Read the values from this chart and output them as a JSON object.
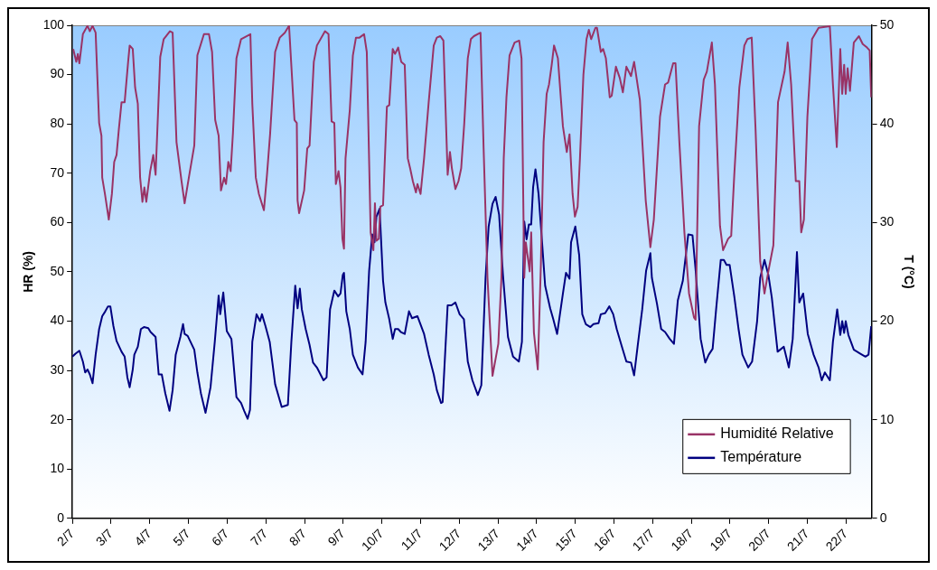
{
  "chart_data": {
    "type": "line",
    "ylabel": "HR (%)",
    "y2label": "T (°C)",
    "xlim": [
      "--07-02",
      "--07-22T15:50"
    ],
    "xticks": [
      {
        "value": "--07-02",
        "label": "2/7"
      },
      {
        "value": "--07-03",
        "label": "3/7"
      },
      {
        "value": "--07-04",
        "label": "4/7"
      },
      {
        "value": "--07-05",
        "label": "5/7"
      },
      {
        "value": "--07-06",
        "label": "6/7"
      },
      {
        "value": "--07-07",
        "label": "7/7"
      },
      {
        "value": "--07-08",
        "label": "8/7"
      },
      {
        "value": "--07-09",
        "label": "9/7"
      },
      {
        "value": "--07-10",
        "label": "10/7"
      },
      {
        "value": "--07-11",
        "label": "11/7"
      },
      {
        "value": "--07-12",
        "label": "12/7"
      },
      {
        "value": "--07-13",
        "label": "13/7"
      },
      {
        "value": "--07-14",
        "label": "14/7"
      },
      {
        "value": "--07-15",
        "label": "15/7"
      },
      {
        "value": "--07-16",
        "label": "16/7"
      },
      {
        "value": "--07-17",
        "label": "17/7"
      },
      {
        "value": "--07-18",
        "label": "18/7"
      },
      {
        "value": "--07-19",
        "label": "19/7"
      },
      {
        "value": "--07-20",
        "label": "20/7"
      },
      {
        "value": "--07-21",
        "label": "21/7"
      },
      {
        "value": "--07-22",
        "label": "22/7"
      }
    ],
    "ylim": [
      0,
      100
    ],
    "yticks": [
      0,
      10,
      20,
      30,
      40,
      50,
      60,
      70,
      80,
      90,
      100
    ],
    "y2lim": [
      0,
      50
    ],
    "y2ticks": [
      0,
      10,
      20,
      30,
      40,
      50
    ],
    "grid": false,
    "legend": "bottom right",
    "marker": "none",
    "line_style": "solid",
    "series": [
      {
        "name": "Humidité Relative",
        "color": "#993366",
        "x": [
          "--07-02T00:29",
          "--07-02T02:24",
          "--07-02T03:22",
          "--07-02T04:19",
          "--07-02T06:29",
          "--07-02T09:22",
          "--07-02T10:48",
          "--07-02T12:29",
          "--07-02T14:24",
          "--07-02T16:34",
          "--07-02T18:00",
          "--07-02T18:29",
          "--07-02T20:10",
          "--07-02T22:34",
          "--07-03T00:29",
          "--07-03T01:55",
          "--07-03T03:22",
          "--07-03T04:48",
          "--07-03T06:29",
          "--07-03T08:24",
          "--07-03T10:34",
          "--07-03T11:31",
          "--07-03T13:26",
          "--07-03T14:53",
          "--07-03T16:34",
          "--07-03T18:00",
          "--07-03T19:26",
          "--07-03T20:38",
          "--07-03T21:50",
          "--07-04T00:14",
          "--07-04T02:10",
          "--07-04T03:36",
          "--07-04T06:29",
          "--07-04T08:38",
          "--07-04T12:29",
          "--07-04T14:10",
          "--07-04T16:34",
          "--07-04T19:41",
          "--07-04T21:36",
          "--07-05T00:14",
          "--07-05T03:36",
          "--07-05T05:31",
          "--07-05T09:36",
          "--07-05T12:43",
          "--07-05T14:38",
          "--07-05T16:34",
          "--07-05T18:43",
          "--07-05T20:10",
          "--07-05T22:05",
          "--07-05T23:17",
          "--07-06T00:43",
          "--07-06T02:10",
          "--07-06T03:36",
          "--07-06T05:46",
          "--07-06T08:38",
          "--07-06T14:24",
          "--07-06T15:36",
          "--07-06T17:46",
          "--07-06T19:41",
          "--07-06T22:48",
          "--07-07T00:43",
          "--07-07T02:38",
          "--07-07T05:46",
          "--07-07T08:38",
          "--07-07T11:46",
          "--07-07T14:24",
          "--07-07T17:46",
          "--07-07T19:12",
          "--07-07T19:41",
          "--07-07T20:38",
          "--07-07T23:46",
          "--07-08T01:41",
          "--07-08T03:07",
          "--07-08T05:46",
          "--07-08T07:41",
          "--07-08T12:43",
          "--07-08T14:53",
          "--07-08T16:48",
          "--07-08T18:29",
          "--07-08T19:26",
          "--07-08T21:07",
          "--07-08T22:19",
          "--07-08T23:31",
          "--07-09T00:29",
          "--07-09T01:26",
          "--07-09T04:05",
          "--07-09T06:00",
          "--07-09T07:55",
          "--07-09T10:05",
          "--07-09T12:58",
          "--07-09T14:38",
          "--07-09T17:02",
          "--07-09T18:43",
          "--07-09T19:41",
          "--07-09T20:38",
          "--07-09T22:05",
          "--07-09T23:02",
          "--07-10T00:43",
          "--07-10T03:07",
          "--07-10T04:34",
          "--07-10T06:43",
          "--07-10T08:10",
          "--07-10T10:05",
          "--07-10T12:00",
          "--07-10T14:10",
          "--07-10T16:05",
          "--07-10T17:31",
          "--07-10T19:12",
          "--07-10T21:07",
          "--07-10T22:05",
          "--07-11T00:00",
          "--07-11T02:10",
          "--07-11T05:02",
          "--07-11T08:10",
          "--07-11T10:05",
          "--07-11T12:14",
          "--07-11T14:10",
          "--07-11T16:48",
          "--07-11T18:14",
          "--07-11T19:26",
          "--07-11T21:36",
          "--07-11T23:31",
          "--07-12T01:12",
          "--07-12T03:07",
          "--07-12T05:17",
          "--07-12T07:12",
          "--07-12T09:07",
          "--07-12T13:12",
          "--07-12T15:07",
          "--07-12T17:31",
          "--07-12T20:38",
          "--07-13T00:14",
          "--07-13T02:10",
          "--07-13T03:36",
          "--07-13T05:17",
          "--07-13T07:12",
          "--07-13T10:19",
          "--07-13T13:12",
          "--07-13T14:38",
          "--07-13T16:19",
          "--07-13T17:17",
          "--07-13T19:41",
          "--07-13T20:38",
          "--07-13T22:19",
          "--07-14T00:43",
          "--07-14T02:38",
          "--07-14T04:19",
          "--07-14T06:14",
          "--07-14T07:41",
          "--07-14T09:22",
          "--07-14T10:48",
          "--07-14T13:12",
          "--07-14T16:19",
          "--07-14T18:43",
          "--07-14T20:24",
          "--07-14T22:19",
          "--07-14T23:46",
          "--07-15T01:26",
          "--07-15T02:53",
          "--07-15T05:02",
          "--07-15T06:58",
          "--07-15T08:24",
          "--07-15T09:50",
          "--07-15T12:29",
          "--07-15T13:26",
          "--07-15T15:50",
          "--07-15T17:17",
          "--07-15T18:58",
          "--07-15T21:22",
          "--07-15T22:34",
          "--07-16T01:12",
          "--07-16T03:36",
          "--07-16T05:31",
          "--07-16T07:41",
          "--07-16T10:34",
          "--07-16T12:29",
          "--07-16T16:05",
          "--07-16T19:41",
          "--07-16T22:34",
          "--07-17T00:43",
          "--07-17T04:34",
          "--07-17T07:41",
          "--07-17T09:36",
          "--07-17T12:43",
          "--07-17T14:10",
          "--07-17T16:34",
          "--07-17T19:41",
          "--07-17T22:34",
          "--07-18T01:41",
          "--07-18T02:38",
          "--07-18T04:48",
          "--07-18T07:41",
          "--07-18T09:36",
          "--07-18T12:43",
          "--07-18T14:38",
          "--07-18T17:46",
          "--07-18T19:41",
          "--07-18T22:48",
          "--07-19T00:43",
          "--07-19T02:38",
          "--07-19T05:46",
          "--07-19T08:53",
          "--07-19T10:48",
          "--07-19T13:26",
          "--07-19T15:50",
          "--07-19T18:43",
          "--07-19T21:22",
          "--07-19T23:46",
          "--07-20T02:53",
          "--07-20T05:46",
          "--07-20T09:50",
          "--07-20T11:46",
          "--07-20T13:55",
          "--07-20T16:48",
          "--07-20T18:58",
          "--07-20T20:10",
          "--07-20T21:50",
          "--07-21T00:00",
          "--07-21T02:53",
          "--07-21T06:58",
          "--07-21T13:55",
          "--07-21T15:50",
          "--07-21T18:14",
          "--07-21T20:24",
          "--07-21T21:36",
          "--07-21T22:48",
          "--07-21T23:46",
          "--07-22T00:58",
          "--07-22T02:24",
          "--07-22T04:48",
          "--07-22T07:55",
          "--07-22T10:19",
          "--07-22T12:58",
          "--07-22T14:38",
          "--07-22T15:36"
        ],
        "values": [
          95.2,
          92.6,
          94.2,
          92.3,
          98.2,
          99.9,
          98.8,
          99.9,
          98.5,
          80.2,
          77.6,
          69.1,
          65.8,
          60.6,
          65.8,
          72.3,
          73.7,
          78.9,
          84.4,
          84.4,
          92.6,
          95.9,
          95.2,
          87.4,
          84.1,
          69.1,
          64.2,
          67.1,
          64.2,
          70.4,
          73.7,
          69.7,
          93.6,
          97.2,
          98.8,
          98.5,
          76.3,
          68.4,
          63.9,
          69.1,
          75.6,
          93.9,
          98.2,
          98.2,
          94.6,
          80.8,
          77.6,
          66.5,
          69.1,
          67.8,
          72.3,
          70.4,
          78.2,
          93.3,
          97.2,
          98.2,
          84.1,
          69.1,
          65.8,
          62.5,
          69.7,
          77.9,
          94.6,
          97.5,
          98.5,
          99.9,
          80.8,
          80.2,
          64.5,
          61.9,
          66.5,
          75,
          75.6,
          92.6,
          95.9,
          98.8,
          98.2,
          80.5,
          80.2,
          67.8,
          70.4,
          67.1,
          56.7,
          54.7,
          73,
          82.8,
          93.9,
          97.5,
          97.5,
          98.2,
          94.6,
          58,
          54.4,
          63.9,
          56.3,
          56.7,
          63.2,
          63.5,
          83.5,
          83.8,
          95.2,
          94.2,
          95.5,
          92.6,
          92,
          73,
          71,
          68.4,
          66.1,
          67.8,
          65.8,
          73,
          84.4,
          95.9,
          97.5,
          97.8,
          96.9,
          69.7,
          74.3,
          71,
          66.8,
          68.4,
          71,
          80.2,
          93.3,
          97.2,
          97.8,
          98.5,
          75,
          48.8,
          28.9,
          35.4,
          48.8,
          73,
          85.4,
          93.9,
          96.5,
          96.9,
          93.3,
          48.8,
          56,
          50.1,
          58,
          37.7,
          30.2,
          51.4,
          76.3,
          86.1,
          88,
          92,
          95.9,
          93.3,
          79.5,
          74.3,
          77.9,
          65.8,
          61.2,
          63.2,
          73,
          90,
          97.2,
          99.1,
          97.2,
          99.5,
          99.5,
          94.6,
          95.2,
          93.3,
          85.4,
          85.7,
          91.6,
          89.3,
          86.4,
          91.6,
          89.7,
          92.6,
          84.8,
          64.5,
          55,
          60.6,
          81.5,
          88,
          88.4,
          92.3,
          92.3,
          76.3,
          58,
          45.6,
          40.7,
          40.3,
          79.5,
          89,
          90.6,
          96.5,
          88,
          59.3,
          54.4,
          56.7,
          57.3,
          69.7,
          87.4,
          95.9,
          97.2,
          97.5,
          78.9,
          52.1,
          45.6,
          50.1,
          55.4,
          84.4,
          90.6,
          96.5,
          88,
          68.4,
          68.4,
          58,
          60.6,
          81.5,
          97.2,
          99.5,
          99.8,
          88,
          75.3,
          95.2,
          86.1,
          92,
          86.1,
          91.3,
          86.7,
          96.5,
          97.8,
          96.2,
          95.5,
          94.9,
          85.4
        ]
      },
      {
        "name": "Température",
        "color": "#000080",
        "axis": "y2",
        "x": [
          "--07-02T00:00",
          "--07-02T01:55",
          "--07-02T04:19",
          "--07-02T06:29",
          "--07-02T07:55",
          "--07-02T09:22",
          "--07-02T10:48",
          "--07-02T12:29",
          "--07-02T14:24",
          "--07-02T16:34",
          "--07-02T18:29",
          "--07-02T20:24",
          "--07-02T22:05",
          "--07-02T23:31",
          "--07-03T01:26",
          "--07-03T03:22",
          "--07-03T06:29",
          "--07-03T08:24",
          "--07-03T10:05",
          "--07-03T11:31",
          "--07-03T13:26",
          "--07-03T14:24",
          "--07-03T16:34",
          "--07-03T18:29",
          "--07-03T20:24",
          "--07-03T23:02",
          "--07-04T00:29",
          "--07-04T03:36",
          "--07-04T05:31",
          "--07-04T07:26",
          "--07-04T09:36",
          "--07-04T12:14",
          "--07-04T14:10",
          "--07-04T16:05",
          "--07-04T18:58",
          "--07-04T20:38",
          "--07-04T21:36",
          "--07-04T23:31",
          "--07-05T03:36",
          "--07-05T05:31",
          "--07-05T07:41",
          "--07-05T10:34",
          "--07-05T13:41",
          "--07-05T16:19",
          "--07-05T18:43",
          "--07-05T19:41",
          "--07-05T21:36",
          "--07-05T23:46",
          "--07-06T02:38",
          "--07-06T05:46",
          "--07-06T08:38",
          "--07-06T10:34",
          "--07-06T12:43",
          "--07-06T14:10",
          "--07-06T15:36",
          "--07-06T18:14",
          "--07-06T20:24",
          "--07-06T21:36",
          "--07-06T23:46",
          "--07-07T02:24",
          "--07-07T05:46",
          "--07-07T09:50",
          "--07-07T13:41",
          "--07-07T15:50",
          "--07-07T18:14",
          "--07-07T19:41",
          "--07-07T21:07",
          "--07-07T22:19",
          "--07-08T00:43",
          "--07-08T03:07",
          "--07-08T05:17",
          "--07-08T07:41",
          "--07-08T11:46",
          "--07-08T13:41",
          "--07-08T15:50",
          "--07-08T18:29",
          "--07-08T20:53",
          "--07-08T22:19",
          "--07-08T23:46",
          "--07-09T00:29",
          "--07-09T01:55",
          "--07-09T04:05",
          "--07-09T06:00",
          "--07-09T09:07",
          "--07-09T12:00",
          "--07-09T13:55",
          "--07-09T16:05",
          "--07-09T18:00",
          "--07-09T19:26",
          "--07-09T20:38",
          "--07-09T22:34",
          "--07-10T00:43",
          "--07-10T02:10",
          "--07-10T04:34",
          "--07-10T06:43",
          "--07-10T08:10",
          "--07-10T10:05",
          "--07-10T11:46",
          "--07-10T14:10",
          "--07-10T16:48",
          "--07-10T18:43",
          "--07-10T22:05",
          "--07-11T02:10",
          "--07-11T05:02",
          "--07-11T08:10",
          "--07-11T10:05",
          "--07-11T12:43",
          "--07-11T13:41",
          "--07-11T16:48",
          "--07-11T19:12",
          "--07-11T21:36",
          "--07-12T00:14",
          "--07-12T02:53",
          "--07-12T05:17",
          "--07-12T08:10",
          "--07-12T11:31",
          "--07-12T13:41",
          "--07-12T16:19",
          "--07-12T18:14",
          "--07-12T20:38",
          "--07-12T22:34",
          "--07-13T00:43",
          "--07-13T03:07",
          "--07-13T06:14",
          "--07-13T09:22",
          "--07-13T12:58",
          "--07-13T14:53",
          "--07-13T16:19",
          "--07-13T17:46",
          "--07-13T19:12",
          "--07-13T20:38",
          "--07-13T21:50",
          "--07-13T23:17",
          "--07-14T01:12",
          "--07-14T03:22",
          "--07-14T05:17",
          "--07-14T08:24",
          "--07-14T10:19",
          "--07-14T12:43",
          "--07-14T16:19",
          "--07-14T18:14",
          "--07-14T20:24",
          "--07-14T21:22",
          "--07-15T00:00",
          "--07-15T02:24",
          "--07-15T04:19",
          "--07-15T06:29",
          "--07-15T09:22",
          "--07-15T11:17",
          "--07-15T14:24",
          "--07-15T15:50",
          "--07-15T18:29",
          "--07-15T21:07",
          "--07-15T23:31",
          "--07-16T01:41",
          "--07-16T04:34",
          "--07-16T07:41",
          "--07-16T10:34",
          "--07-16T12:29",
          "--07-16T14:38",
          "--07-16T17:31",
          "--07-16T19:55",
          "--07-16T22:34",
          "--07-16T23:31",
          "--07-17T02:38",
          "--07-17T05:17",
          "--07-17T07:41",
          "--07-17T10:34",
          "--07-17T13:12",
          "--07-17T15:36",
          "--07-17T18:43",
          "--07-17T22:05",
          "--07-18T00:43",
          "--07-18T02:38",
          "--07-18T05:46",
          "--07-18T08:38",
          "--07-18T10:48",
          "--07-18T13:12",
          "--07-18T15:22",
          "--07-18T18:14",
          "--07-18T20:10",
          "--07-18T21:50",
          "--07-18T23:46",
          "--07-19T02:38",
          "--07-19T05:17",
          "--07-19T07:41",
          "--07-19T11:17",
          "--07-19T13:41",
          "--07-19T16:48",
          "--07-19T18:43",
          "--07-19T21:22",
          "--07-19T23:46",
          "--07-20T01:55",
          "--07-20T05:31",
          "--07-20T09:22",
          "--07-20T12:29",
          "--07-20T14:53",
          "--07-20T17:31",
          "--07-20T18:58",
          "--07-20T21:22",
          "--07-21T00:14",
          "--07-21T03:50",
          "--07-21T06:58",
          "--07-21T08:53",
          "--07-21T10:48",
          "--07-21T13:55",
          "--07-21T15:50",
          "--07-21T18:29",
          "--07-21T20:24",
          "--07-21T21:36",
          "--07-21T22:48",
          "--07-21T23:46",
          "--07-22T01:26",
          "--07-22T04:48",
          "--07-22T08:53",
          "--07-22T12:00",
          "--07-22T13:55",
          "--07-22T15:36"
        ],
        "values": [
          16.4,
          16.7,
          17,
          15.9,
          14.8,
          15.1,
          14.6,
          13.7,
          16.6,
          19.2,
          20.5,
          21,
          21.5,
          21.5,
          19.5,
          18,
          16.9,
          16.4,
          14.3,
          13.3,
          15.1,
          16.6,
          17.4,
          19.2,
          19.4,
          19.3,
          18.9,
          18.4,
          14.6,
          14.6,
          12.7,
          10.9,
          13,
          16.6,
          18.4,
          19.7,
          18.7,
          18.5,
          17.1,
          14.8,
          12.7,
          10.7,
          13.3,
          17.9,
          22.6,
          20.7,
          22.9,
          19,
          18.2,
          12.3,
          11.7,
          10.9,
          10.1,
          11,
          17.9,
          20.7,
          20,
          20.7,
          19.5,
          17.9,
          13.6,
          11.3,
          11.5,
          17.9,
          23.6,
          21.3,
          23.3,
          21.2,
          19.2,
          17.6,
          15.8,
          15.3,
          14,
          14.3,
          21.2,
          23.1,
          22.5,
          22.8,
          24.7,
          24.9,
          21,
          19.2,
          16.6,
          15.3,
          14.6,
          17.9,
          25.1,
          28.8,
          28,
          30.6,
          31.4,
          24.1,
          21.9,
          20.2,
          18.2,
          19.2,
          19.2,
          18.9,
          18.7,
          21,
          20.3,
          20.5,
          18.7,
          16.6,
          14.6,
          13,
          11.7,
          11.8,
          21.6,
          21.6,
          21.9,
          20.7,
          20.2,
          15.9,
          14,
          12.5,
          13.5,
          24.4,
          29.6,
          31.9,
          32.6,
          30.8,
          24.7,
          18.4,
          16.4,
          15.9,
          17.9,
          30.1,
          28.3,
          29.8,
          29.8,
          33.6,
          35.4,
          32.9,
          28,
          23.6,
          21.3,
          20.2,
          18.7,
          22.8,
          24.9,
          24.3,
          28,
          29.6,
          26.7,
          20.7,
          19.7,
          19.4,
          19.7,
          19.8,
          20.7,
          20.8,
          21.5,
          20.7,
          19.2,
          17.6,
          15.9,
          15.8,
          14.5,
          17.4,
          21.2,
          25.1,
          26.9,
          24.4,
          21.8,
          19.2,
          18.9,
          18.2,
          17.7,
          22.1,
          24.1,
          28.8,
          28.7,
          25.2,
          18.2,
          15.8,
          16.6,
          17.2,
          21.2,
          26.2,
          26.2,
          25.7,
          25.7,
          22.5,
          19.2,
          16.6,
          15.3,
          15.9,
          20,
          24.4,
          26.2,
          24.7,
          22.4,
          16.9,
          17.4,
          15.3,
          18.2,
          27,
          21.9,
          22.8,
          18.7,
          16.6,
          15.3,
          14,
          14.8,
          14,
          17.9,
          21.2,
          18.6,
          20,
          18.8,
          20,
          18.6,
          17.1,
          16.7,
          16.4,
          16.6,
          19.5
        ]
      }
    ]
  }
}
